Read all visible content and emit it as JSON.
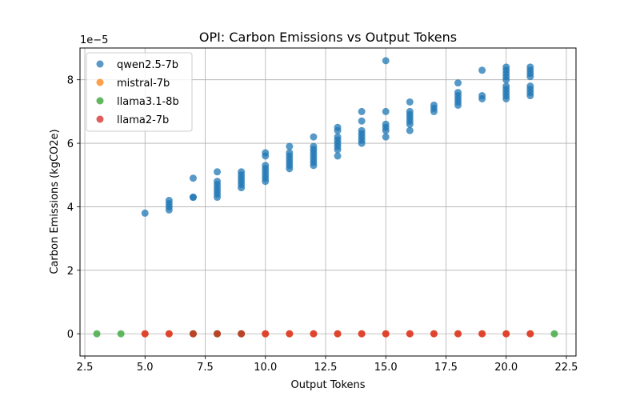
{
  "chart_data": {
    "type": "scatter",
    "title": "OPI: Carbon Emissions vs Output Tokens",
    "xlabel": "Output Tokens",
    "ylabel": "Carbon Emissions (kgCO2e)",
    "y_offset_label": "1e−5",
    "xlim": [
      2.3,
      22.9
    ],
    "ylim": [
      -7e-07,
      9e-06
    ],
    "x_ticks": [
      2.5,
      5.0,
      7.5,
      10.0,
      12.5,
      15.0,
      17.5,
      20.0,
      22.5
    ],
    "x_tick_labels": [
      "2.5",
      "5.0",
      "7.5",
      "10.0",
      "12.5",
      "15.0",
      "17.5",
      "20.0",
      "22.5"
    ],
    "y_ticks": [
      0,
      2e-06,
      4e-06,
      6e-06,
      8e-06
    ],
    "y_tick_labels": [
      "0",
      "2",
      "4",
      "6",
      "8"
    ],
    "grid": true,
    "legend_position": "top-left",
    "series": [
      {
        "name": "qwen2.5-7b",
        "color": "#1f77b4",
        "points": [
          [
            5,
            3.8e-06
          ],
          [
            6,
            3.9e-06
          ],
          [
            6,
            4e-06
          ],
          [
            6,
            4.1e-06
          ],
          [
            6,
            4.2e-06
          ],
          [
            7,
            4.3e-06
          ],
          [
            7,
            4.3e-06
          ],
          [
            7,
            4.9e-06
          ],
          [
            8,
            4.3e-06
          ],
          [
            8,
            4.4e-06
          ],
          [
            8,
            4.5e-06
          ],
          [
            8,
            4.6e-06
          ],
          [
            8,
            4.7e-06
          ],
          [
            8,
            4.8e-06
          ],
          [
            8,
            5.1e-06
          ],
          [
            9,
            4.6e-06
          ],
          [
            9,
            4.7e-06
          ],
          [
            9,
            4.8e-06
          ],
          [
            9,
            4.9e-06
          ],
          [
            9,
            5e-06
          ],
          [
            9,
            5.1e-06
          ],
          [
            10,
            4.8e-06
          ],
          [
            10,
            4.9e-06
          ],
          [
            10,
            5e-06
          ],
          [
            10,
            5.1e-06
          ],
          [
            10,
            5.2e-06
          ],
          [
            10,
            5.3e-06
          ],
          [
            10,
            5.6e-06
          ],
          [
            10,
            5.7e-06
          ],
          [
            11,
            5.2e-06
          ],
          [
            11,
            5.3e-06
          ],
          [
            11,
            5.4e-06
          ],
          [
            11,
            5.5e-06
          ],
          [
            11,
            5.6e-06
          ],
          [
            11,
            5.7e-06
          ],
          [
            11,
            5.9e-06
          ],
          [
            12,
            5.3e-06
          ],
          [
            12,
            5.4e-06
          ],
          [
            12,
            5.5e-06
          ],
          [
            12,
            5.6e-06
          ],
          [
            12,
            5.7e-06
          ],
          [
            12,
            5.8e-06
          ],
          [
            12,
            5.9e-06
          ],
          [
            12,
            6.2e-06
          ],
          [
            13,
            5.6e-06
          ],
          [
            13,
            5.8e-06
          ],
          [
            13,
            5.9e-06
          ],
          [
            13,
            6e-06
          ],
          [
            13,
            6.1e-06
          ],
          [
            13,
            6.2e-06
          ],
          [
            13,
            6.4e-06
          ],
          [
            13,
            6.5e-06
          ],
          [
            14,
            6e-06
          ],
          [
            14,
            6.1e-06
          ],
          [
            14,
            6.2e-06
          ],
          [
            14,
            6.3e-06
          ],
          [
            14,
            6.4e-06
          ],
          [
            14,
            6.7e-06
          ],
          [
            14,
            7e-06
          ],
          [
            15,
            6.2e-06
          ],
          [
            15,
            6.4e-06
          ],
          [
            15,
            6.5e-06
          ],
          [
            15,
            6.6e-06
          ],
          [
            15,
            7e-06
          ],
          [
            15,
            8.6e-06
          ],
          [
            16,
            6.4e-06
          ],
          [
            16,
            6.6e-06
          ],
          [
            16,
            6.7e-06
          ],
          [
            16,
            6.8e-06
          ],
          [
            16,
            6.9e-06
          ],
          [
            16,
            7e-06
          ],
          [
            16,
            7.3e-06
          ],
          [
            17,
            7e-06
          ],
          [
            17,
            7.1e-06
          ],
          [
            17,
            7.2e-06
          ],
          [
            18,
            7.2e-06
          ],
          [
            18,
            7.3e-06
          ],
          [
            18,
            7.4e-06
          ],
          [
            18,
            7.5e-06
          ],
          [
            18,
            7.6e-06
          ],
          [
            18,
            7.9e-06
          ],
          [
            19,
            7.4e-06
          ],
          [
            19,
            7.5e-06
          ],
          [
            19,
            8.3e-06
          ],
          [
            20,
            7.4e-06
          ],
          [
            20,
            7.5e-06
          ],
          [
            20,
            7.6e-06
          ],
          [
            20,
            7.7e-06
          ],
          [
            20,
            7.8e-06
          ],
          [
            20,
            8e-06
          ],
          [
            20,
            8.1e-06
          ],
          [
            20,
            8.2e-06
          ],
          [
            20,
            8.3e-06
          ],
          [
            20,
            8.4e-06
          ],
          [
            21,
            7.5e-06
          ],
          [
            21,
            7.6e-06
          ],
          [
            21,
            7.7e-06
          ],
          [
            21,
            7.8e-06
          ],
          [
            21,
            8.1e-06
          ],
          [
            21,
            8.2e-06
          ],
          [
            21,
            8.3e-06
          ],
          [
            21,
            8.4e-06
          ]
        ]
      },
      {
        "name": "mistral-7b",
        "color": "#ff7f0e",
        "points": [
          [
            5,
            0
          ],
          [
            6,
            0
          ],
          [
            7,
            0
          ],
          [
            8,
            0
          ],
          [
            9,
            0
          ],
          [
            10,
            0
          ],
          [
            11,
            0
          ],
          [
            12,
            0
          ],
          [
            13,
            0
          ],
          [
            14,
            0
          ],
          [
            15,
            0
          ],
          [
            16,
            0
          ],
          [
            17,
            0
          ],
          [
            18,
            0
          ],
          [
            19,
            0
          ],
          [
            20,
            0
          ],
          [
            21,
            0
          ]
        ]
      },
      {
        "name": "llama3.1-8b",
        "color": "#2ca02c",
        "points": [
          [
            3,
            0
          ],
          [
            4,
            0
          ],
          [
            7,
            0
          ],
          [
            8,
            0
          ],
          [
            9,
            0
          ],
          [
            22,
            0
          ]
        ]
      },
      {
        "name": "llama2-7b",
        "color": "#d62728",
        "points": [
          [
            5,
            0
          ],
          [
            6,
            0
          ],
          [
            7,
            0
          ],
          [
            8,
            0
          ],
          [
            9,
            0
          ],
          [
            10,
            0
          ],
          [
            11,
            0
          ],
          [
            12,
            0
          ],
          [
            13,
            0
          ],
          [
            14,
            0
          ],
          [
            15,
            0
          ],
          [
            16,
            0
          ],
          [
            17,
            0
          ],
          [
            18,
            0
          ],
          [
            19,
            0
          ],
          [
            20,
            0
          ],
          [
            21,
            0
          ]
        ]
      }
    ]
  }
}
